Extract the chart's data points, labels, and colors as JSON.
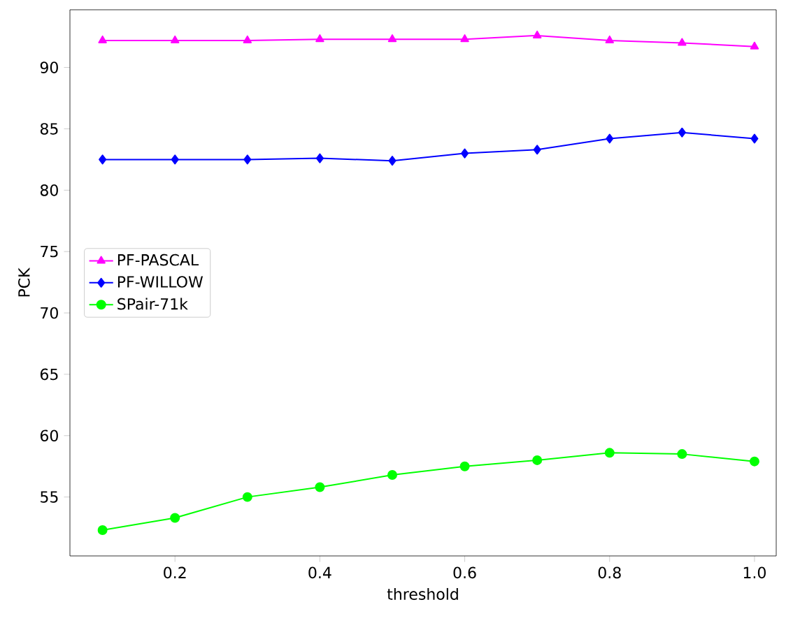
{
  "chart_data": {
    "type": "line",
    "xlabel": "threshold",
    "ylabel": "PCK",
    "x": [
      0.1,
      0.2,
      0.3,
      0.4,
      0.5,
      0.6,
      0.7,
      0.8,
      0.9,
      1.0
    ],
    "series": [
      {
        "name": "PF-PASCAL",
        "color": "#ff00ff",
        "marker": "triangle",
        "values": [
          92.2,
          92.2,
          92.2,
          92.3,
          92.3,
          92.3,
          92.6,
          92.2,
          92.0,
          91.7
        ]
      },
      {
        "name": "PF-WILLOW",
        "color": "#0000ff",
        "marker": "diamond",
        "values": [
          82.5,
          82.5,
          82.5,
          82.6,
          82.4,
          83.0,
          83.3,
          84.2,
          84.7,
          84.2
        ]
      },
      {
        "name": "SPair-71k",
        "color": "#00ff00",
        "marker": "circle",
        "values": [
          52.3,
          53.3,
          55.0,
          55.8,
          56.8,
          57.5,
          58.0,
          58.6,
          58.5,
          57.9
        ]
      }
    ],
    "xlim": [
      0.055,
      1.03
    ],
    "ylim": [
      50.2,
      94.7
    ],
    "xticks": [
      0.2,
      0.4,
      0.6,
      0.8,
      {
        "value": 1.0,
        "label": "1.0"
      }
    ],
    "yticks": [
      55,
      60,
      65,
      70,
      75,
      80,
      85,
      90
    ],
    "legend": "center left",
    "grid": false
  }
}
